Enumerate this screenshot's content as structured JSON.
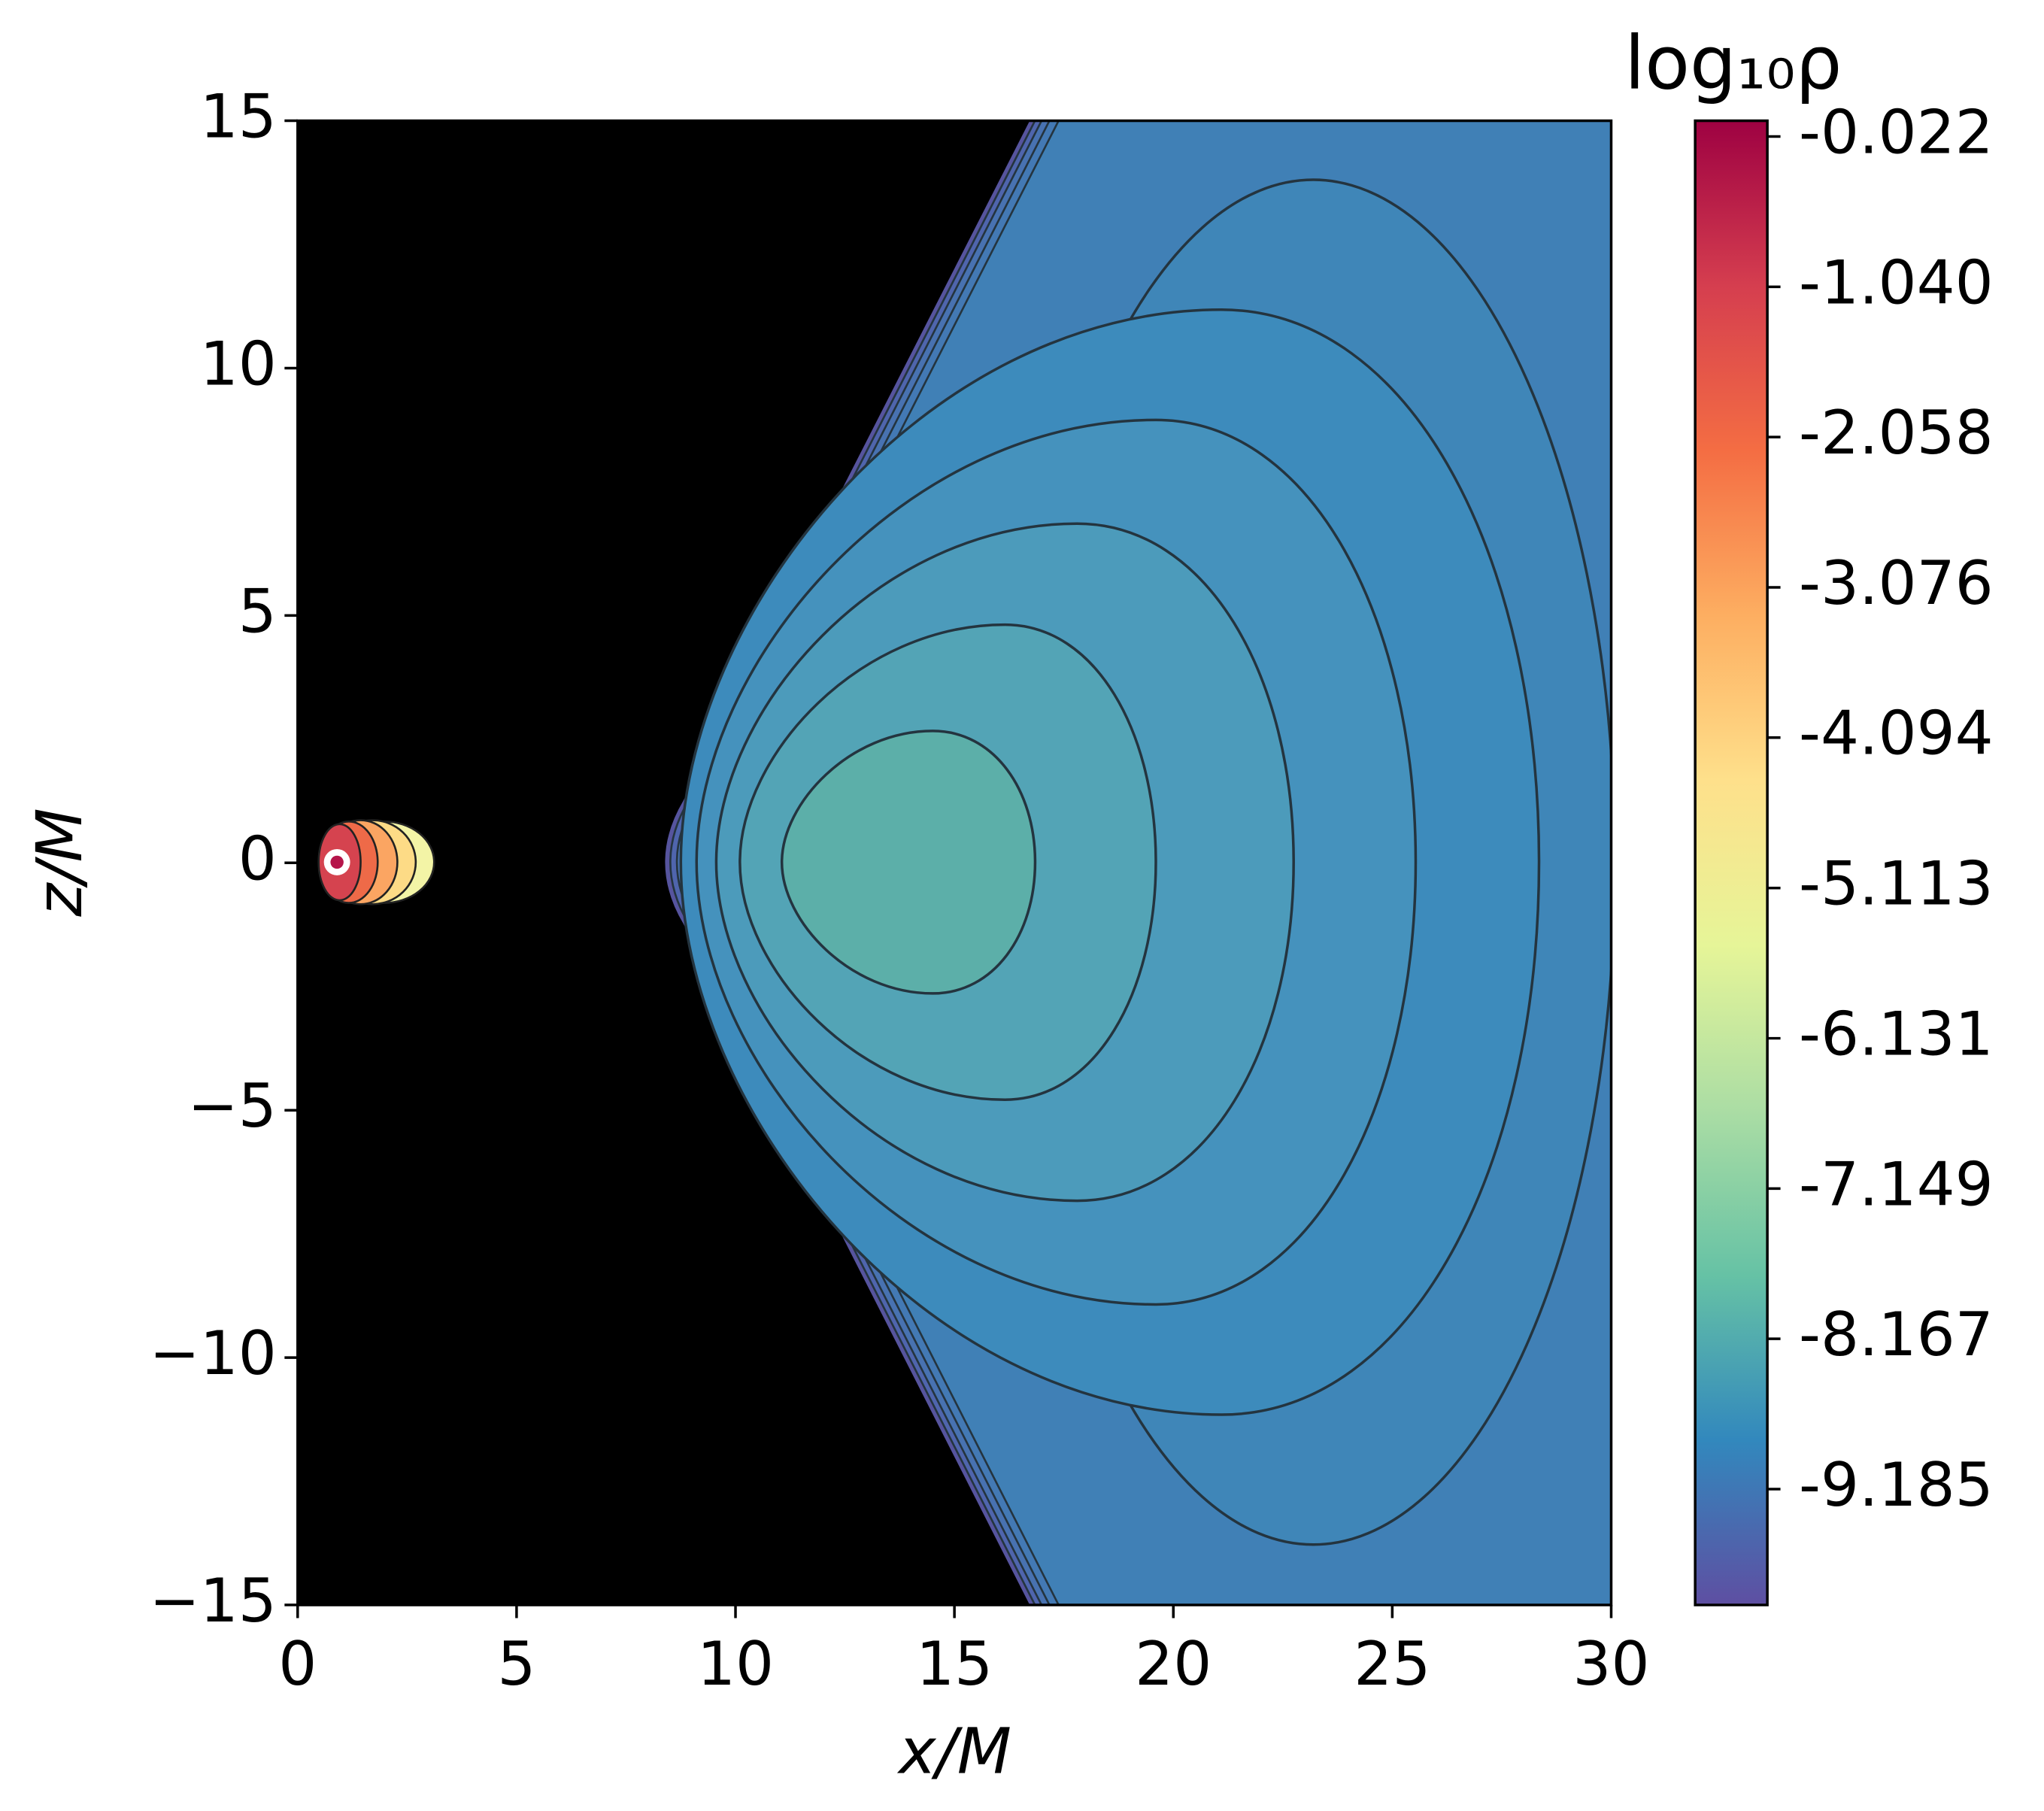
{
  "chart_data": {
    "type": "contour",
    "xlabel": "x/M",
    "ylabel": "z/M",
    "xlim": [
      0,
      30
    ],
    "ylim": [
      -15,
      15
    ],
    "xticks": [
      0,
      5,
      10,
      15,
      20,
      25,
      30
    ],
    "yticks": [
      {
        "value": -15,
        "label": "−15"
      },
      {
        "value": -10,
        "label": "−10"
      },
      {
        "value": -5,
        "label": "−5"
      },
      0,
      5,
      10,
      15
    ],
    "colorbar_title": "log₁₀ρ",
    "clim": [
      -9.97,
      0.085
    ],
    "colorbar_ticks": [
      -0.022,
      {
        "value": -1.04,
        "label": "-1.040"
      },
      -2.058,
      -3.076,
      -4.094,
      -5.113,
      -6.131,
      -7.149,
      -8.167,
      -9.185
    ],
    "colormap": [
      "#5e4fa2",
      "#3288bd",
      "#66c2a5",
      "#abdda4",
      "#e6f598",
      "#fee08b",
      "#fdae61",
      "#f46d43",
      "#d53e4f",
      "#9e0142"
    ]
  }
}
